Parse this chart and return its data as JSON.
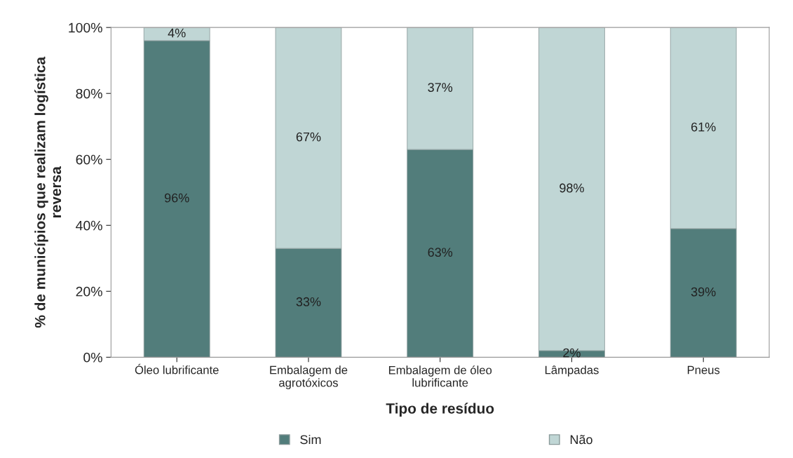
{
  "chart_data": {
    "type": "bar",
    "stacked": true,
    "xlabel": "Tipo de resíduo",
    "ylabel": "% de municípios que realizam logística\nreversa",
    "categories": [
      "Óleo lubrificante",
      "Embalagem de\nagrotóxicos",
      "Embalagem de óleo\nlubrificante",
      "Lâmpadas",
      "Pneus"
    ],
    "series": [
      {
        "name": "Sim",
        "color": "#527d7b",
        "values": [
          96,
          33,
          63,
          2,
          39
        ],
        "value_labels": [
          "96%",
          "33%",
          "63%",
          "2%",
          "39%"
        ]
      },
      {
        "name": "Não",
        "color": "#c0d6d5",
        "values": [
          4,
          67,
          37,
          98,
          61
        ],
        "value_labels": [
          "4%",
          "67%",
          "37%",
          "98%",
          "61%"
        ]
      }
    ],
    "ylim": [
      0,
      100
    ],
    "yticks": [
      {
        "value": 0,
        "label": "0%"
      },
      {
        "value": 20,
        "label": "20%"
      },
      {
        "value": 40,
        "label": "40%"
      },
      {
        "value": 60,
        "label": "60%"
      },
      {
        "value": 80,
        "label": "80%"
      },
      {
        "value": 100,
        "label": "100%"
      }
    ],
    "grid": false,
    "legend": "bottom"
  }
}
